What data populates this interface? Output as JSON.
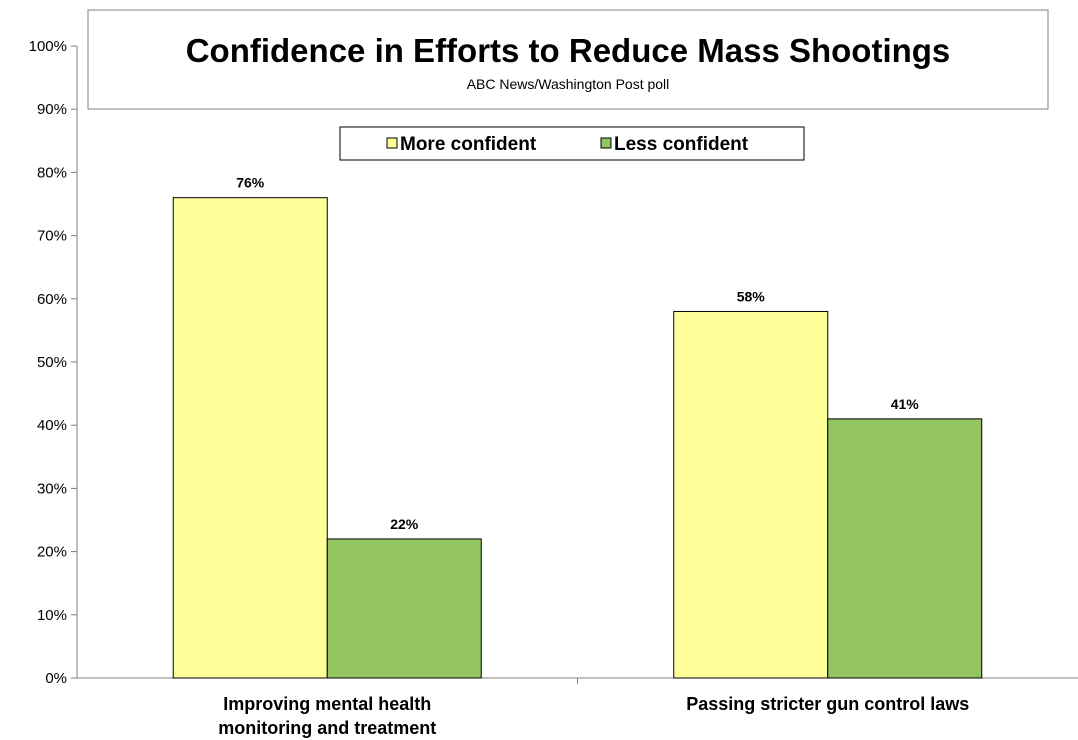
{
  "chart_data": {
    "type": "bar",
    "title": "Confidence in Efforts to Reduce Mass Shootings",
    "subtitle": "ABC News/Washington Post poll",
    "categories": [
      [
        "Improving mental health",
        "monitoring and treatment"
      ],
      [
        "Passing stricter gun control laws"
      ]
    ],
    "series": [
      {
        "name": "More confident",
        "values": [
          76,
          58
        ],
        "color": "#FFFF99"
      },
      {
        "name": "Less confident",
        "values": [
          22,
          41
        ],
        "color": "#92C460"
      }
    ],
    "value_suffix": "%",
    "ylim": [
      0,
      100
    ],
    "ytick_step": 10,
    "grid": false,
    "legend_position": "top"
  }
}
